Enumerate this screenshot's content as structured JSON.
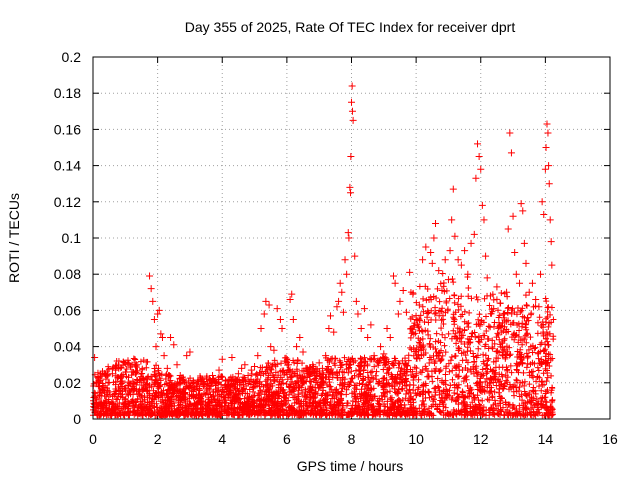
{
  "chart_data": {
    "type": "scatter",
    "title": "Day 355 of 2025, Rate Of TEC Index for receiver dprt",
    "xlabel": "GPS time / hours",
    "ylabel": "ROTI / TECUs",
    "xlim": [
      0,
      16
    ],
    "ylim": [
      0,
      0.2
    ],
    "xticks": [
      0,
      2,
      4,
      6,
      8,
      10,
      12,
      14,
      16
    ],
    "yticks": [
      0,
      0.02,
      0.04,
      0.06,
      0.08,
      0.1,
      0.12,
      0.14,
      0.16,
      0.18,
      0.2
    ],
    "grid": true,
    "marker": "+",
    "color": "#ff0000",
    "series": [
      {
        "values_envelope_note": "",
        "points": [
          [
            0.05,
            0.034
          ],
          [
            0.1,
            0.02
          ],
          [
            0.2,
            0.018
          ],
          [
            0.3,
            0.016
          ],
          [
            0.4,
            0.022
          ],
          [
            0.5,
            0.015
          ],
          [
            0.6,
            0.025
          ],
          [
            0.7,
            0.019
          ],
          [
            0.8,
            0.014
          ],
          [
            0.9,
            0.021
          ],
          [
            1.0,
            0.017
          ],
          [
            1.1,
            0.023
          ],
          [
            1.2,
            0.026
          ],
          [
            1.3,
            0.031
          ],
          [
            1.35,
            0.03
          ],
          [
            1.45,
            0.021
          ],
          [
            1.55,
            0.016
          ],
          [
            1.65,
            0.022
          ],
          [
            1.75,
            0.079
          ],
          [
            1.8,
            0.072
          ],
          [
            1.85,
            0.065
          ],
          [
            1.9,
            0.055
          ],
          [
            1.95,
            0.04
          ],
          [
            2.0,
            0.058
          ],
          [
            2.05,
            0.06
          ],
          [
            2.1,
            0.047
          ],
          [
            2.15,
            0.045
          ],
          [
            2.2,
            0.035
          ],
          [
            2.3,
            0.028
          ],
          [
            2.4,
            0.045
          ],
          [
            2.5,
            0.041
          ],
          [
            2.6,
            0.03
          ],
          [
            2.7,
            0.024
          ],
          [
            2.8,
            0.022
          ],
          [
            2.9,
            0.035
          ],
          [
            3.0,
            0.037
          ],
          [
            3.1,
            0.02
          ],
          [
            3.2,
            0.018
          ],
          [
            3.3,
            0.016
          ],
          [
            3.4,
            0.022
          ],
          [
            3.5,
            0.019
          ],
          [
            3.6,
            0.016
          ],
          [
            3.7,
            0.024
          ],
          [
            3.8,
            0.02
          ],
          [
            3.9,
            0.027
          ],
          [
            4.0,
            0.033
          ],
          [
            4.1,
            0.021
          ],
          [
            4.2,
            0.018
          ],
          [
            4.3,
            0.034
          ],
          [
            4.4,
            0.022
          ],
          [
            4.5,
            0.025
          ],
          [
            4.6,
            0.028
          ],
          [
            4.7,
            0.03
          ],
          [
            4.8,
            0.024
          ],
          [
            4.9,
            0.027
          ],
          [
            5.0,
            0.029
          ],
          [
            5.1,
            0.035
          ],
          [
            5.2,
            0.05
          ],
          [
            5.3,
            0.058
          ],
          [
            5.35,
            0.065
          ],
          [
            5.45,
            0.063
          ],
          [
            5.5,
            0.04
          ],
          [
            5.6,
            0.038
          ],
          [
            5.7,
            0.061
          ],
          [
            5.8,
            0.055
          ],
          [
            5.85,
            0.05
          ],
          [
            5.95,
            0.032
          ],
          [
            6.05,
            0.03
          ],
          [
            6.1,
            0.066
          ],
          [
            6.15,
            0.069
          ],
          [
            6.2,
            0.055
          ],
          [
            6.3,
            0.04
          ],
          [
            6.4,
            0.045
          ],
          [
            6.5,
            0.037
          ],
          [
            6.6,
            0.028
          ],
          [
            6.7,
            0.025
          ],
          [
            6.8,
            0.03
          ],
          [
            6.9,
            0.024
          ],
          [
            7.0,
            0.031
          ],
          [
            7.1,
            0.028
          ],
          [
            7.2,
            0.035
          ],
          [
            7.3,
            0.05
          ],
          [
            7.35,
            0.057
          ],
          [
            7.45,
            0.048
          ],
          [
            7.55,
            0.062
          ],
          [
            7.6,
            0.065
          ],
          [
            7.65,
            0.075
          ],
          [
            7.7,
            0.07
          ],
          [
            7.75,
            0.059
          ],
          [
            7.8,
            0.088
          ],
          [
            7.85,
            0.08
          ],
          [
            7.9,
            0.103
          ],
          [
            7.92,
            0.1
          ],
          [
            7.95,
            0.128
          ],
          [
            7.97,
            0.125
          ],
          [
            7.98,
            0.145
          ],
          [
            8.0,
            0.175
          ],
          [
            8.02,
            0.184
          ],
          [
            8.03,
            0.17
          ],
          [
            8.05,
            0.165
          ],
          [
            8.1,
            0.09
          ],
          [
            8.15,
            0.065
          ],
          [
            8.2,
            0.058
          ],
          [
            8.3,
            0.05
          ],
          [
            8.4,
            0.061
          ],
          [
            8.5,
            0.045
          ],
          [
            8.6,
            0.052
          ],
          [
            8.7,
            0.035
          ],
          [
            8.8,
            0.032
          ],
          [
            8.9,
            0.04
          ],
          [
            9.0,
            0.036
          ],
          [
            9.1,
            0.05
          ],
          [
            9.2,
            0.045
          ],
          [
            9.3,
            0.079
          ],
          [
            9.35,
            0.075
          ],
          [
            9.45,
            0.058
          ],
          [
            9.5,
            0.065
          ],
          [
            9.6,
            0.071
          ],
          [
            9.7,
            0.059
          ],
          [
            9.8,
            0.081
          ],
          [
            9.9,
            0.069
          ],
          [
            10.0,
            0.055
          ],
          [
            10.1,
            0.063
          ],
          [
            10.2,
            0.088
          ],
          [
            10.3,
            0.095
          ],
          [
            10.4,
            0.066
          ],
          [
            10.45,
            0.092
          ],
          [
            10.5,
            0.086
          ],
          [
            10.55,
            0.1
          ],
          [
            10.6,
            0.108
          ],
          [
            10.7,
            0.082
          ],
          [
            10.8,
            0.071
          ],
          [
            10.9,
            0.088
          ],
          [
            11.0,
            0.077
          ],
          [
            11.05,
            0.093
          ],
          [
            11.1,
            0.11
          ],
          [
            11.15,
            0.127
          ],
          [
            11.2,
            0.101
          ],
          [
            11.3,
            0.088
          ],
          [
            11.4,
            0.085
          ],
          [
            11.5,
            0.093
          ],
          [
            11.6,
            0.08
          ],
          [
            11.7,
            0.097
          ],
          [
            11.8,
            0.102
          ],
          [
            11.85,
            0.133
          ],
          [
            11.9,
            0.152
          ],
          [
            11.95,
            0.145
          ],
          [
            12.0,
            0.138
          ],
          [
            12.05,
            0.118
          ],
          [
            12.1,
            0.11
          ],
          [
            12.15,
            0.09
          ],
          [
            12.2,
            0.078
          ],
          [
            12.3,
            0.068
          ],
          [
            12.4,
            0.061
          ],
          [
            12.5,
            0.073
          ],
          [
            12.6,
            0.064
          ],
          [
            12.7,
            0.058
          ],
          [
            12.8,
            0.07
          ],
          [
            12.85,
            0.105
          ],
          [
            12.9,
            0.158
          ],
          [
            12.95,
            0.147
          ],
          [
            13.0,
            0.112
          ],
          [
            13.05,
            0.092
          ],
          [
            13.1,
            0.08
          ],
          [
            13.2,
            0.075
          ],
          [
            13.25,
            0.119
          ],
          [
            13.3,
            0.115
          ],
          [
            13.35,
            0.097
          ],
          [
            13.4,
            0.086
          ],
          [
            13.5,
            0.07
          ],
          [
            13.6,
            0.075
          ],
          [
            13.7,
            0.066
          ],
          [
            13.8,
            0.062
          ],
          [
            13.85,
            0.08
          ],
          [
            13.9,
            0.12
          ],
          [
            13.95,
            0.113
          ],
          [
            14.0,
            0.138
          ],
          [
            14.02,
            0.15
          ],
          [
            14.05,
            0.163
          ],
          [
            14.08,
            0.158
          ],
          [
            14.1,
            0.14
          ],
          [
            14.12,
            0.13
          ],
          [
            14.15,
            0.11
          ],
          [
            14.18,
            0.098
          ],
          [
            14.2,
            0.085
          ]
        ]
      }
    ]
  }
}
